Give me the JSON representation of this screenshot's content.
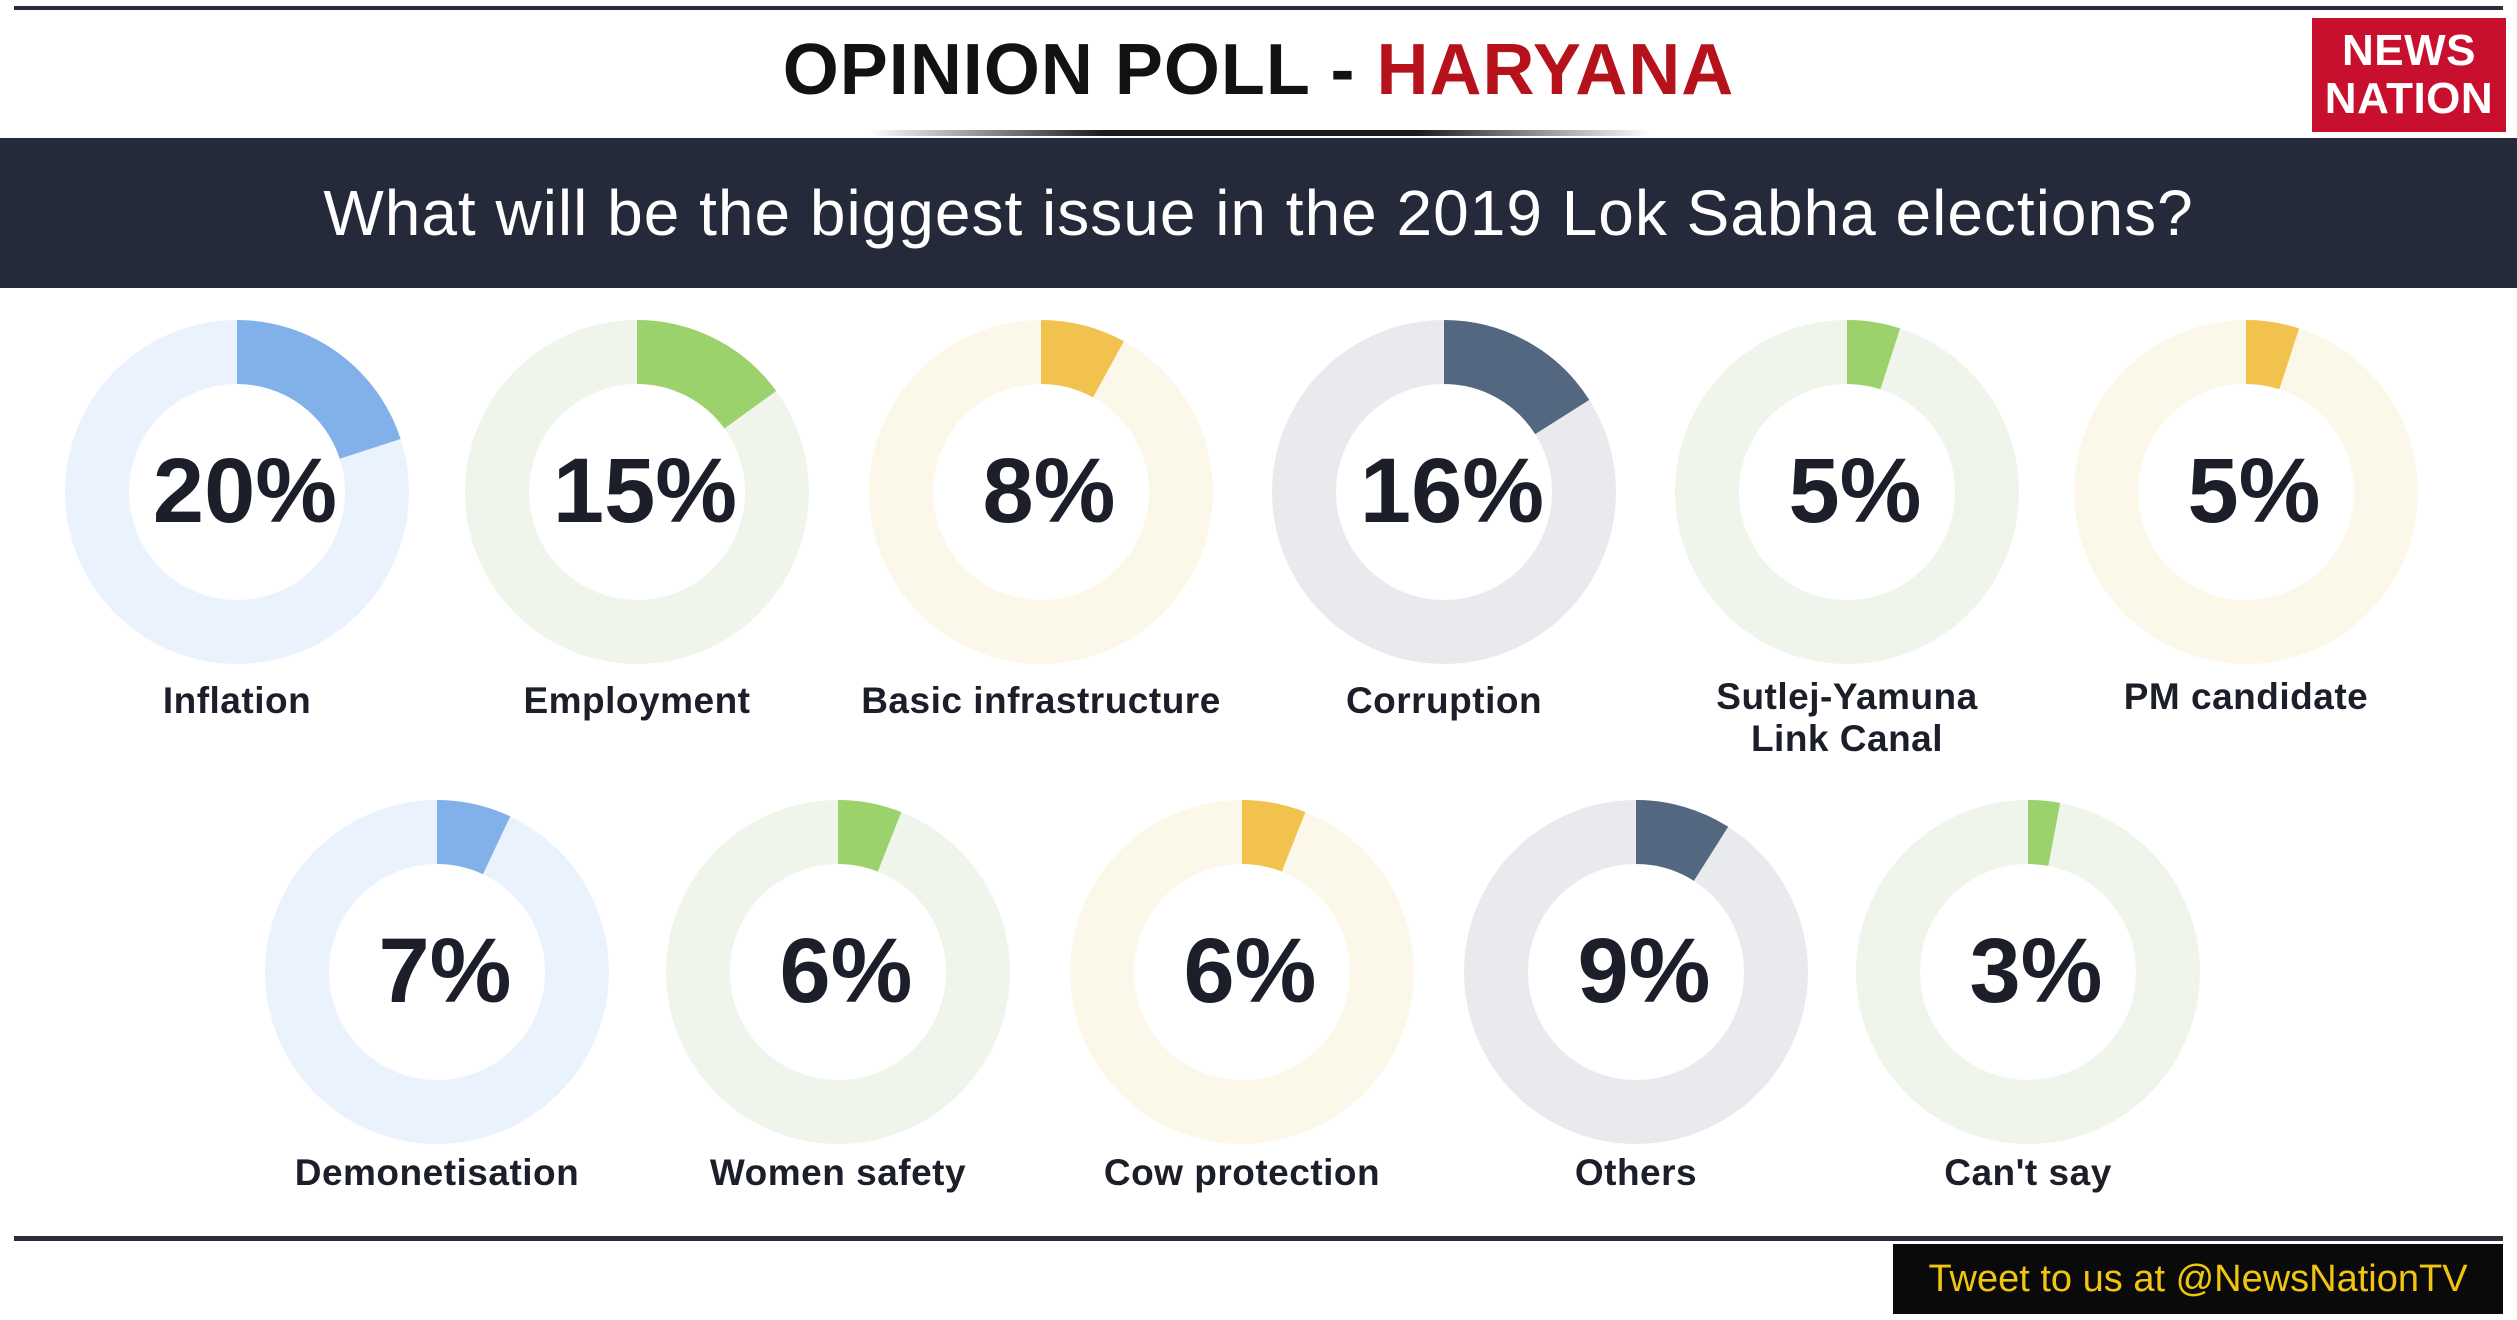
{
  "header": {
    "title_main": "OPINION POLL - ",
    "title_accent": "HARYANA",
    "logo_line1": "NEWS",
    "logo_line2": "NATION"
  },
  "question": "What will be the biggest issue in the 2019 Lok Sabha elections?",
  "footer": {
    "tweet_text": "Tweet to us at @NewsNationTV"
  },
  "chart_data": {
    "type": "donut",
    "title": "What will be the biggest issue in the 2019 Lok Sabha elections?",
    "unit": "%",
    "items": [
      {
        "label": "Inflation",
        "value": 20,
        "label_text": "20%",
        "color": "#82b1ea",
        "track": "#eaf3fd"
      },
      {
        "label": "Employment",
        "value": 15,
        "label_text": "15%",
        "color": "#9cd26c",
        "track": "#f0f5ec"
      },
      {
        "label": "Basic infrastructure",
        "value": 8,
        "label_text": "8%",
        "color": "#f2c24f",
        "track": "#fbf8ea"
      },
      {
        "label": "Corruption",
        "value": 16,
        "label_text": "16%",
        "color": "#536880",
        "track": "#e8eaee"
      },
      {
        "label": "Sutlej-Yamuna Link Canal",
        "value": 5,
        "label_text": "5%",
        "color": "#9cd26c",
        "track": "#f0f5ec"
      },
      {
        "label": "PM candidate",
        "value": 5,
        "label_text": "5%",
        "color": "#f2c24f",
        "track": "#fbf8ea"
      },
      {
        "label": "Demonetisation",
        "value": 7,
        "label_text": "7%",
        "color": "#82b1ea",
        "track": "#eaf3fd"
      },
      {
        "label": "Women safety",
        "value": 6,
        "label_text": "6%",
        "color": "#9cd26c",
        "track": "#f0f5ec"
      },
      {
        "label": "Cow protection",
        "value": 6,
        "label_text": "6%",
        "color": "#f2c24f",
        "track": "#fbf8ea"
      },
      {
        "label": "Others",
        "value": 9,
        "label_text": "9%",
        "color": "#536880",
        "track": "#e8eaee"
      },
      {
        "label": "Can't say",
        "value": 3,
        "label_text": "3%",
        "color": "#9cd26c",
        "track": "#f0f5ec"
      }
    ]
  }
}
